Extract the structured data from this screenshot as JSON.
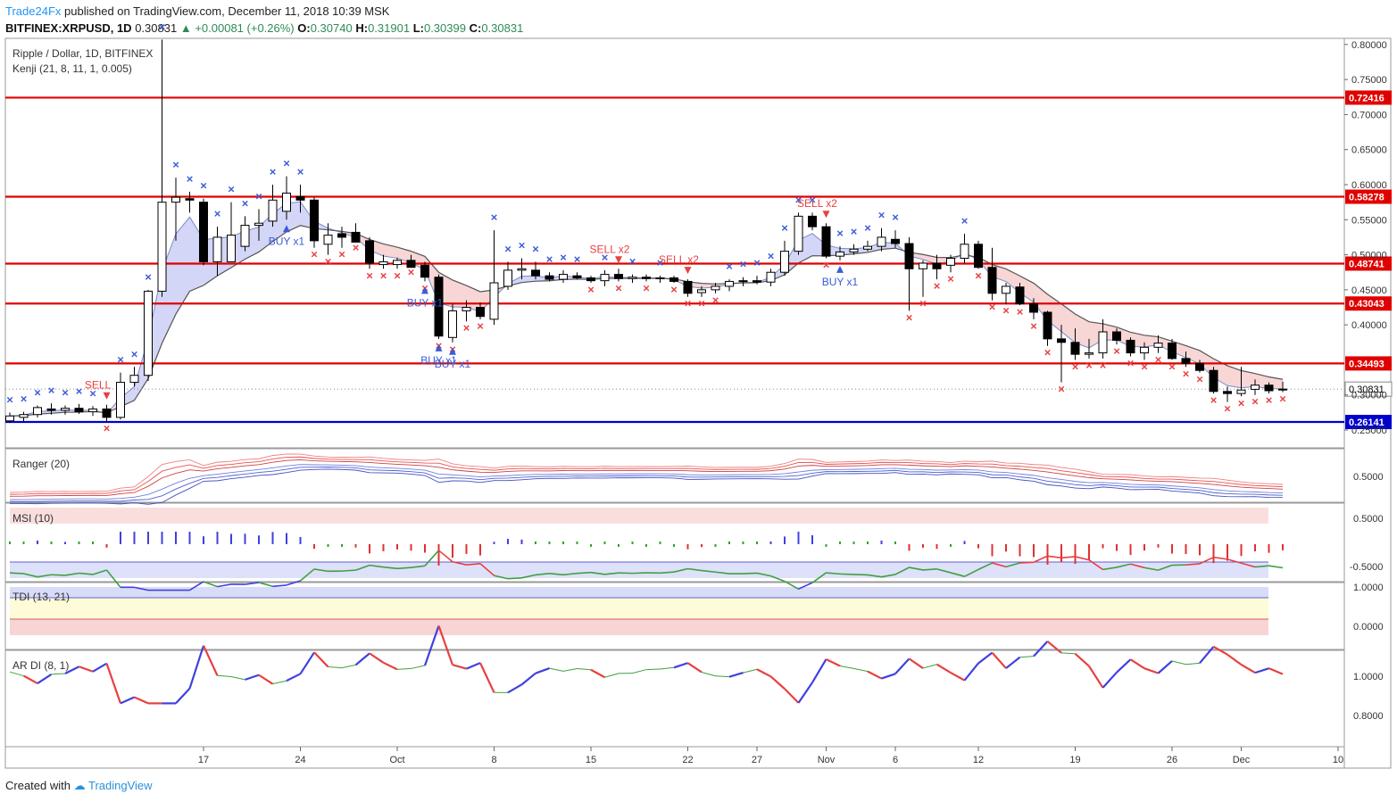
{
  "header": {
    "publisher": "Trade24Fx",
    "published_text": "published on TradingView.com, December 11, 2018 10:39 MSK",
    "symbol": "BITFINEX:XRPUSD, 1D",
    "last": "0.30831",
    "change": "+0.00081 (+0.26%)",
    "o_label": "O:",
    "o": "0.30740",
    "h_label": "H:",
    "h": "0.31901",
    "l_label": "L:",
    "l": "0.30399",
    "c_label": "C:",
    "c": "0.30831"
  },
  "footer": {
    "created_with": "Created with",
    "brand": "TradingView"
  },
  "colors": {
    "bull": "#ffffff",
    "bear": "#000000",
    "level": "#e00000",
    "support": "#0000cc",
    "buy": "#3b5cd6",
    "sell": "#e84040"
  },
  "chart_data": [
    {
      "type": "candlestick",
      "title": "Ripple / Dollar, 1D, BITFINEX",
      "indicator": "Kenji (21, 8, 11, 1, 0.005)",
      "ylim": [
        0.23,
        0.81
      ],
      "y_ticks": [
        "0.80000",
        "0.75000",
        "0.70000",
        "0.65000",
        "0.60000",
        "0.55000",
        "0.50000",
        "0.45000",
        "0.40000",
        "0.30000",
        "0.25000"
      ],
      "x_labels": [
        {
          "i": 14,
          "t": "17"
        },
        {
          "i": 21,
          "t": "24"
        },
        {
          "i": 28,
          "t": "Oct"
        },
        {
          "i": 35,
          "t": "8"
        },
        {
          "i": 42,
          "t": "15"
        },
        {
          "i": 49,
          "t": "22"
        },
        {
          "i": 54,
          "t": "27"
        },
        {
          "i": 59,
          "t": "Nov"
        },
        {
          "i": 64,
          "t": "6"
        },
        {
          "i": 70,
          "t": "12"
        },
        {
          "i": 77,
          "t": "19"
        },
        {
          "i": 84,
          "t": "26"
        },
        {
          "i": 89,
          "t": "Dec"
        },
        {
          "i": 96,
          "t": "10"
        }
      ],
      "levels": [
        {
          "value": 0.72416,
          "label": "0.72416",
          "color": "red"
        },
        {
          "value": 0.58278,
          "label": "0.58278",
          "color": "red"
        },
        {
          "value": 0.48741,
          "label": "0.48741",
          "color": "red"
        },
        {
          "value": 0.43043,
          "label": "0.43043",
          "color": "red"
        },
        {
          "value": 0.34493,
          "label": "0.34493",
          "color": "red"
        },
        {
          "value": 0.26141,
          "label": "0.26141",
          "color": "blue"
        }
      ],
      "last_price": {
        "value": 0.30831,
        "label": "0.30831"
      },
      "ohlc": [
        [
          0.263,
          0.275,
          0.26,
          0.27
        ],
        [
          0.268,
          0.276,
          0.262,
          0.272
        ],
        [
          0.272,
          0.285,
          0.268,
          0.282
        ],
        [
          0.28,
          0.288,
          0.272,
          0.278
        ],
        [
          0.278,
          0.285,
          0.272,
          0.281
        ],
        [
          0.281,
          0.287,
          0.273,
          0.276
        ],
        [
          0.276,
          0.284,
          0.27,
          0.28
        ],
        [
          0.28,
          0.286,
          0.262,
          0.268
        ],
        [
          0.268,
          0.332,
          0.265,
          0.318
        ],
        [
          0.318,
          0.34,
          0.312,
          0.328
        ],
        [
          0.328,
          0.45,
          0.32,
          0.448
        ],
        [
          0.448,
          0.807,
          0.44,
          0.575
        ],
        [
          0.575,
          0.61,
          0.52,
          0.582
        ],
        [
          0.58,
          0.59,
          0.56,
          0.578
        ],
        [
          0.575,
          0.58,
          0.485,
          0.49
        ],
        [
          0.49,
          0.54,
          0.47,
          0.525
        ],
        [
          0.49,
          0.575,
          0.49,
          0.528
        ],
        [
          0.512,
          0.555,
          0.505,
          0.542
        ],
        [
          0.542,
          0.565,
          0.52,
          0.545
        ],
        [
          0.548,
          0.6,
          0.54,
          0.578
        ],
        [
          0.562,
          0.612,
          0.55,
          0.588
        ],
        [
          0.583,
          0.6,
          0.56,
          0.578
        ],
        [
          0.578,
          0.582,
          0.51,
          0.52
        ],
        [
          0.515,
          0.545,
          0.5,
          0.528
        ],
        [
          0.53,
          0.54,
          0.51,
          0.525
        ],
        [
          0.532,
          0.545,
          0.52,
          0.518
        ],
        [
          0.52,
          0.525,
          0.48,
          0.488
        ],
        [
          0.486,
          0.5,
          0.48,
          0.49
        ],
        [
          0.486,
          0.496,
          0.48,
          0.492
        ],
        [
          0.492,
          0.5,
          0.485,
          0.482
        ],
        [
          0.485,
          0.49,
          0.462,
          0.468
        ],
        [
          0.468,
          0.472,
          0.38,
          0.384
        ],
        [
          0.382,
          0.43,
          0.375,
          0.42
        ],
        [
          0.42,
          0.435,
          0.405,
          0.425
        ],
        [
          0.425,
          0.432,
          0.408,
          0.412
        ],
        [
          0.408,
          0.535,
          0.4,
          0.46
        ],
        [
          0.455,
          0.49,
          0.45,
          0.478
        ],
        [
          0.478,
          0.495,
          0.465,
          0.48
        ],
        [
          0.478,
          0.49,
          0.465,
          0.47
        ],
        [
          0.47,
          0.475,
          0.462,
          0.465
        ],
        [
          0.465,
          0.478,
          0.46,
          0.472
        ],
        [
          0.47,
          0.475,
          0.465,
          0.467
        ],
        [
          0.467,
          0.47,
          0.46,
          0.463
        ],
        [
          0.463,
          0.478,
          0.455,
          0.472
        ],
        [
          0.472,
          0.48,
          0.462,
          0.466
        ],
        [
          0.466,
          0.472,
          0.46,
          0.468
        ],
        [
          0.468,
          0.472,
          0.462,
          0.466
        ],
        [
          0.466,
          0.47,
          0.46,
          0.467
        ],
        [
          0.467,
          0.47,
          0.46,
          0.462
        ],
        [
          0.462,
          0.465,
          0.44,
          0.445
        ],
        [
          0.446,
          0.455,
          0.44,
          0.45
        ],
        [
          0.45,
          0.46,
          0.445,
          0.455
        ],
        [
          0.455,
          0.465,
          0.448,
          0.462
        ],
        [
          0.462,
          0.468,
          0.455,
          0.463
        ],
        [
          0.463,
          0.47,
          0.458,
          0.461
        ],
        [
          0.461,
          0.48,
          0.455,
          0.475
        ],
        [
          0.475,
          0.52,
          0.47,
          0.505
        ],
        [
          0.505,
          0.56,
          0.5,
          0.555
        ],
        [
          0.555,
          0.56,
          0.535,
          0.54
        ],
        [
          0.54,
          0.545,
          0.495,
          0.498
        ],
        [
          0.498,
          0.512,
          0.492,
          0.504
        ],
        [
          0.504,
          0.515,
          0.5,
          0.508
        ],
        [
          0.508,
          0.52,
          0.505,
          0.512
        ],
        [
          0.512,
          0.538,
          0.505,
          0.525
        ],
        [
          0.522,
          0.535,
          0.51,
          0.516
        ],
        [
          0.516,
          0.525,
          0.42,
          0.48
        ],
        [
          0.48,
          0.492,
          0.44,
          0.488
        ],
        [
          0.488,
          0.5,
          0.465,
          0.48
        ],
        [
          0.485,
          0.5,
          0.475,
          0.495
        ],
        [
          0.495,
          0.53,
          0.488,
          0.515
        ],
        [
          0.515,
          0.52,
          0.48,
          0.482
        ],
        [
          0.482,
          0.51,
          0.435,
          0.445
        ],
        [
          0.445,
          0.46,
          0.43,
          0.455
        ],
        [
          0.454,
          0.46,
          0.428,
          0.43
        ],
        [
          0.43,
          0.438,
          0.408,
          0.418
        ],
        [
          0.418,
          0.42,
          0.37,
          0.38
        ],
        [
          0.38,
          0.4,
          0.318,
          0.375
        ],
        [
          0.375,
          0.395,
          0.35,
          0.358
        ],
        [
          0.358,
          0.38,
          0.352,
          0.36
        ],
        [
          0.36,
          0.408,
          0.352,
          0.39
        ],
        [
          0.39,
          0.395,
          0.372,
          0.378
        ],
        [
          0.378,
          0.382,
          0.355,
          0.36
        ],
        [
          0.36,
          0.375,
          0.35,
          0.368
        ],
        [
          0.368,
          0.385,
          0.36,
          0.374
        ],
        [
          0.374,
          0.38,
          0.35,
          0.352
        ],
        [
          0.352,
          0.362,
          0.34,
          0.345
        ],
        [
          0.345,
          0.35,
          0.332,
          0.335
        ],
        [
          0.335,
          0.34,
          0.302,
          0.305
        ],
        [
          0.305,
          0.312,
          0.29,
          0.302
        ],
        [
          0.302,
          0.34,
          0.298,
          0.307
        ],
        [
          0.308,
          0.322,
          0.3,
          0.314
        ],
        [
          0.314,
          0.318,
          0.302,
          0.306
        ],
        [
          0.3074,
          0.31901,
          0.30399,
          0.30831
        ]
      ],
      "signals": [
        {
          "i": 7,
          "type": "sell",
          "label": "SELL"
        },
        {
          "i": 20,
          "type": "buy",
          "label": "BUY x1"
        },
        {
          "i": 30,
          "type": "buy",
          "label": "BUY x1"
        },
        {
          "i": 31,
          "type": "buy",
          "label": "BUY x1"
        },
        {
          "i": 32,
          "type": "buy",
          "label": "BUY x1"
        },
        {
          "i": 44,
          "type": "sell",
          "label": "SELL x2"
        },
        {
          "i": 49,
          "type": "sell",
          "label": "SELL x2"
        },
        {
          "i": 59,
          "type": "sell",
          "label": "SELL x2"
        },
        {
          "i": 60,
          "type": "buy",
          "label": "BUY x1"
        }
      ]
    },
    {
      "type": "line",
      "title": "Ranger (20)",
      "y_ticks": [
        "0.5000"
      ]
    },
    {
      "type": "bar",
      "title": "MSI (10)",
      "y_ticks": [
        "0.5000",
        "-0.5000"
      ]
    },
    {
      "type": "line",
      "title": "TDI (13, 21)",
      "y_ticks": [
        "1.0000",
        "0.0000"
      ]
    },
    {
      "type": "line",
      "title": "AR DI (8, 1)",
      "y_ticks": [
        "1.0000",
        "0.8000"
      ]
    }
  ]
}
